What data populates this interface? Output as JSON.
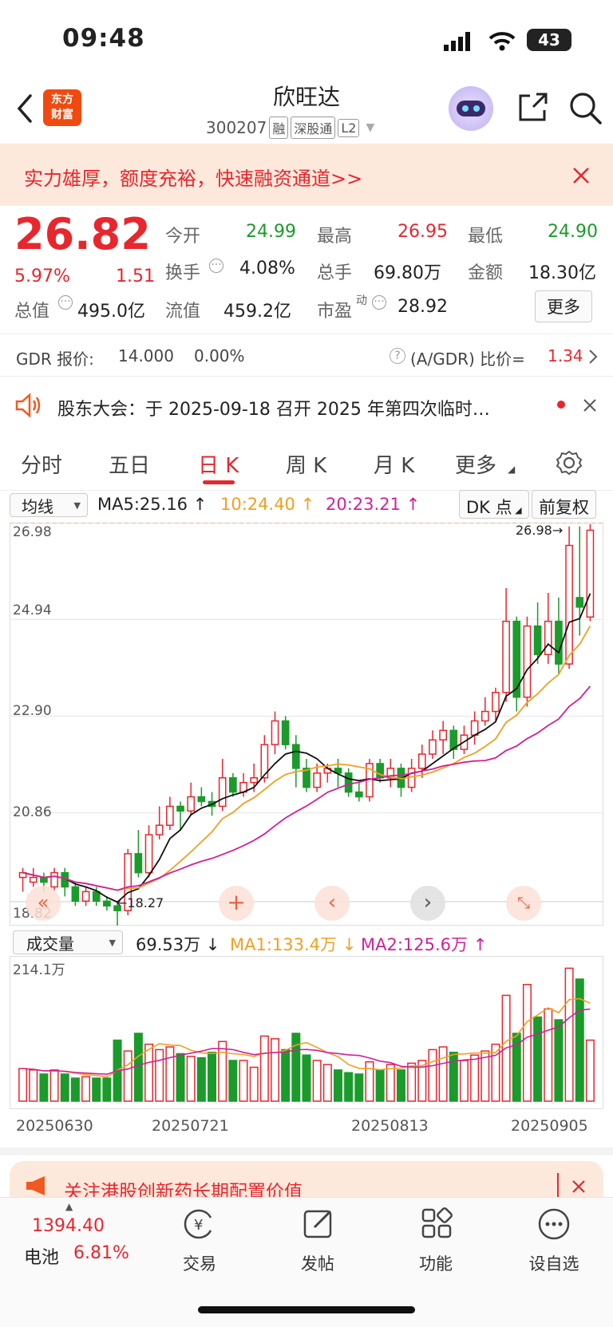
{
  "status": {
    "time": "09:48",
    "battery": "43"
  },
  "header": {
    "logo_line1": "东方",
    "logo_line2": "财富",
    "title": "欣旺达",
    "code": "300207",
    "tags": [
      "融",
      "深股通",
      "L2"
    ]
  },
  "banner": {
    "text": "实力雄厚，额度充裕，快速融资通道>>"
  },
  "quote": {
    "price": "26.82",
    "change_pct": "5.97%",
    "change": "1.51",
    "fields": {
      "open_label": "今开",
      "open": "24.99",
      "high_label": "最高",
      "high": "26.95",
      "low_label": "最低",
      "low": "24.90",
      "turnover_label": "换手",
      "turnover": "4.08%",
      "volume_label": "总手",
      "volume": "69.80万",
      "amount_label": "金额",
      "amount": "18.30亿",
      "mcap_label": "总值",
      "mcap": "495.0亿",
      "float_label": "流值",
      "float": "459.2亿",
      "pe_label": "市盈",
      "pe_sup": "动",
      "pe": "28.92"
    },
    "more_label": "更多"
  },
  "gdr": {
    "label": "GDR 报价:",
    "price": "14.000",
    "pct": "0.00%",
    "ratio_label": "(A/GDR) 比价=",
    "ratio": "1.34"
  },
  "notice": {
    "text": "股东大会：于 2025-09-18 召开 2025 年第四次临时…"
  },
  "tabs": [
    {
      "label": "分时"
    },
    {
      "label": "五日"
    },
    {
      "label": "日 K"
    },
    {
      "label": "周 K"
    },
    {
      "label": "月 K"
    },
    {
      "label": "更多"
    }
  ],
  "kline_toolbar": {
    "ma_select": "均线",
    "ma5": "MA5:25.16",
    "ma10": "10:24.40",
    "ma20": "20:23.21",
    "dk_label": "DK 点",
    "adjust_label": "前复权"
  },
  "kline": {
    "y_labels": [
      "26.98",
      "24.94",
      "22.90",
      "20.86",
      "18.82"
    ],
    "high_marker": "26.98",
    "low_marker": "18.27"
  },
  "volume_toolbar": {
    "select": "成交量",
    "vol": "69.53万",
    "ma1": "MA1:133.4万",
    "ma2": "MA2:125.6万",
    "max_label": "214.1万"
  },
  "dates": [
    "20250630",
    "20250721",
    "20250813",
    "20250905"
  ],
  "bottom_ad": {
    "text": "关注港股创新药长期配置价值"
  },
  "bottom_nav": {
    "index_value": "1394.40",
    "index_name": "电池",
    "index_pct": "6.81%",
    "items": [
      {
        "label": "交易"
      },
      {
        "label": "发帖"
      },
      {
        "label": "功能"
      },
      {
        "label": "设自选"
      }
    ]
  },
  "chart_data": {
    "type": "candlestick",
    "ylim": [
      18.82,
      26.98
    ],
    "candles": [
      [
        19.5,
        19.6,
        19.2,
        19.7
      ],
      [
        19.4,
        19.5,
        19.3,
        19.7
      ],
      [
        19.5,
        19.4,
        19.2,
        19.6
      ],
      [
        19.3,
        19.6,
        19.2,
        19.7
      ],
      [
        19.6,
        19.3,
        19.1,
        19.7
      ],
      [
        19.3,
        19.0,
        18.9,
        19.4
      ],
      [
        19.0,
        19.2,
        18.9,
        19.3
      ],
      [
        19.2,
        19.0,
        18.9,
        19.3
      ],
      [
        19.0,
        18.9,
        18.8,
        19.1
      ],
      [
        18.9,
        18.8,
        18.3,
        19.0
      ],
      [
        18.8,
        20.0,
        18.7,
        20.1
      ],
      [
        20.0,
        19.6,
        19.5,
        20.5
      ],
      [
        19.6,
        20.4,
        19.5,
        20.6
      ],
      [
        20.4,
        20.6,
        20.3,
        21.0
      ],
      [
        20.6,
        21.0,
        20.5,
        21.2
      ],
      [
        21.0,
        20.9,
        20.5,
        21.1
      ],
      [
        20.9,
        21.2,
        20.8,
        21.5
      ],
      [
        21.2,
        21.1,
        21.0,
        21.4
      ],
      [
        21.1,
        21.0,
        20.8,
        21.3
      ],
      [
        21.0,
        21.6,
        20.9,
        22.0
      ],
      [
        21.6,
        21.3,
        21.2,
        21.7
      ],
      [
        21.3,
        21.5,
        21.2,
        21.7
      ],
      [
        21.5,
        21.6,
        21.3,
        21.9
      ],
      [
        21.6,
        22.3,
        21.5,
        22.5
      ],
      [
        22.3,
        22.8,
        22.1,
        23.0
      ],
      [
        22.8,
        22.3,
        22.2,
        22.9
      ],
      [
        22.3,
        21.8,
        21.4,
        22.5
      ],
      [
        21.8,
        21.4,
        21.3,
        22.0
      ],
      [
        21.4,
        21.7,
        21.3,
        21.9
      ],
      [
        21.7,
        21.8,
        21.5,
        21.9
      ],
      [
        21.8,
        21.7,
        21.4,
        22.0
      ],
      [
        21.7,
        21.3,
        21.2,
        21.8
      ],
      [
        21.3,
        21.2,
        21.1,
        21.5
      ],
      [
        21.2,
        21.9,
        21.1,
        22.0
      ],
      [
        21.9,
        21.6,
        21.5,
        22.0
      ],
      [
        21.6,
        21.8,
        21.4,
        22.0
      ],
      [
        21.8,
        21.4,
        21.2,
        21.9
      ],
      [
        21.4,
        21.8,
        21.3,
        22.0
      ],
      [
        21.8,
        22.1,
        21.6,
        22.3
      ],
      [
        22.1,
        22.4,
        22.0,
        22.6
      ],
      [
        22.4,
        22.6,
        22.1,
        22.8
      ],
      [
        22.6,
        22.2,
        22.0,
        22.7
      ],
      [
        22.2,
        22.5,
        22.1,
        22.7
      ],
      [
        22.5,
        22.8,
        22.3,
        23.0
      ],
      [
        22.8,
        23.0,
        22.7,
        23.3
      ],
      [
        23.0,
        23.4,
        22.8,
        23.5
      ],
      [
        23.4,
        24.9,
        23.2,
        25.6
      ],
      [
        24.9,
        23.3,
        23.0,
        25.0
      ],
      [
        23.3,
        24.8,
        23.1,
        25.0
      ],
      [
        24.8,
        24.2,
        24.0,
        25.3
      ],
      [
        24.2,
        24.9,
        24.0,
        25.5
      ],
      [
        24.9,
        24.0,
        23.8,
        25.4
      ],
      [
        24.0,
        26.5,
        23.9,
        26.9
      ],
      [
        25.4,
        25.2,
        24.6,
        26.9
      ],
      [
        24.99,
        26.82,
        24.9,
        26.95
      ]
    ]
  }
}
